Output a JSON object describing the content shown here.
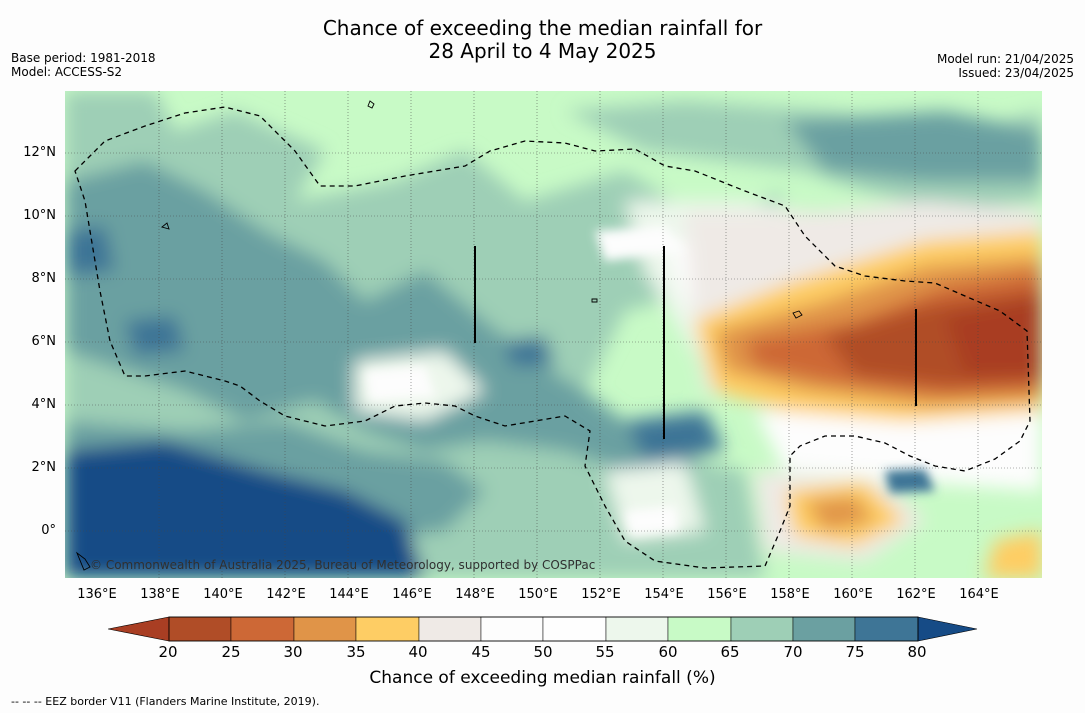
{
  "title_line1": "Chance of exceeding the median rainfall for",
  "title_line2": "28 April to 4 May 2025",
  "meta_left": [
    "Base period: 1981-2018",
    "Model: ACCESS-S2"
  ],
  "meta_right": [
    "Model run: 21/04/2025",
    "Issued: 23/04/2025"
  ],
  "map": {
    "lon_range": [
      135,
      166
    ],
    "lat_range": [
      -1.5,
      14
    ],
    "lon_ticks": [
      "136°E",
      "138°E",
      "140°E",
      "142°E",
      "144°E",
      "146°E",
      "148°E",
      "150°E",
      "152°E",
      "154°E",
      "156°E",
      "158°E",
      "160°E",
      "162°E",
      "164°E"
    ],
    "lat_ticks": [
      "12°N",
      "10°N",
      "8°N",
      "6°N",
      "4°N",
      "2°N",
      "0°"
    ],
    "gridlines": true,
    "copyright": "© Commonwealth of Australia 2025, Bureau of Meteorology, supported by COSPPac",
    "base_color": "#c8fac6"
  },
  "colorbar": {
    "ticks": [
      "20",
      "25",
      "30",
      "35",
      "40",
      "45",
      "50",
      "55",
      "60",
      "65",
      "70",
      "75",
      "80"
    ],
    "colors": [
      "#a93e23",
      "#b04d27",
      "#cd6836",
      "#e09448",
      "#fecd64",
      "#efeae6",
      "#fdfdfd",
      "#fefefe",
      "#edf7ec",
      "#c8fac6",
      "#9ecfb6",
      "#6ba0a1",
      "#3e7596",
      "#164b86"
    ],
    "label": "Chance of exceeding median rainfall (%)"
  },
  "footnote": "--  --  -- EEZ border V11 (Flanders Marine Institute, 2019)."
}
